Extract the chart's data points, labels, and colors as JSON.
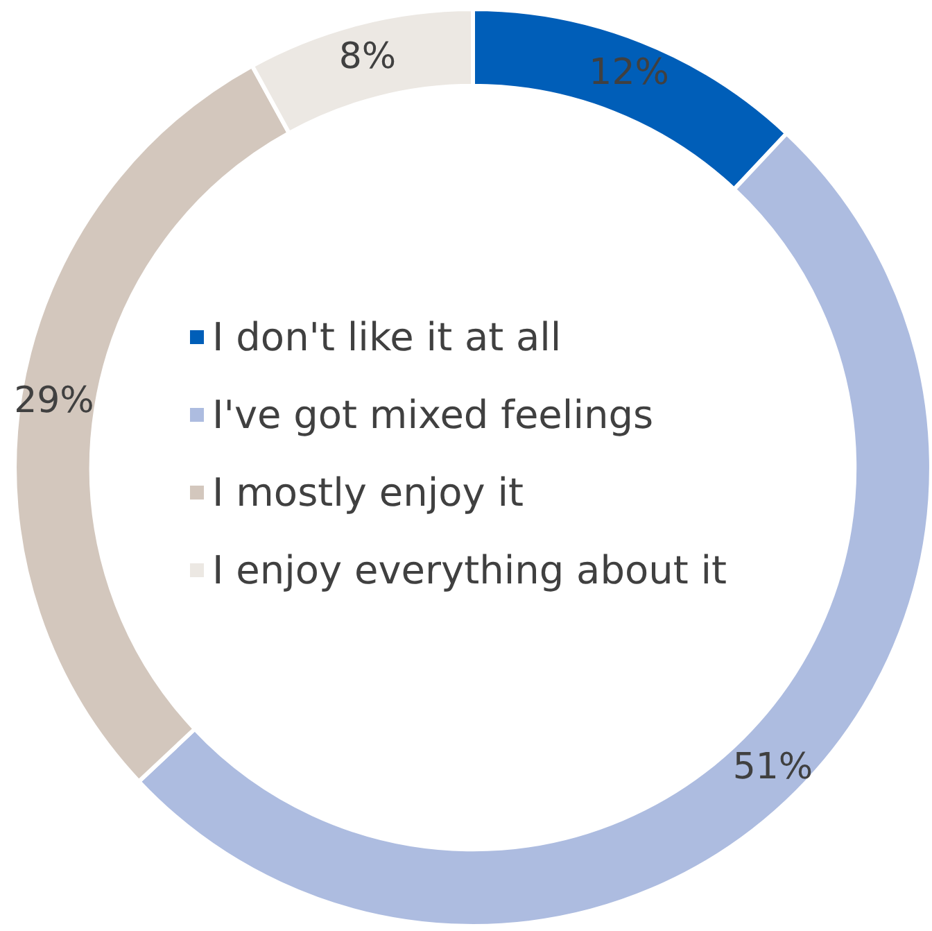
{
  "chart_data": {
    "type": "donut",
    "categories": [
      "I don't like it at all",
      "I've got mixed feelings",
      "I mostly enjoy it",
      "I enjoy everything about it"
    ],
    "values": [
      12,
      51,
      29,
      8
    ],
    "colors": [
      "#005eb8",
      "#adbce0",
      "#d3c7bd",
      "#ece8e3"
    ],
    "value_labels": [
      "12%",
      "51%",
      "29%",
      "8%"
    ],
    "legend": "center"
  }
}
